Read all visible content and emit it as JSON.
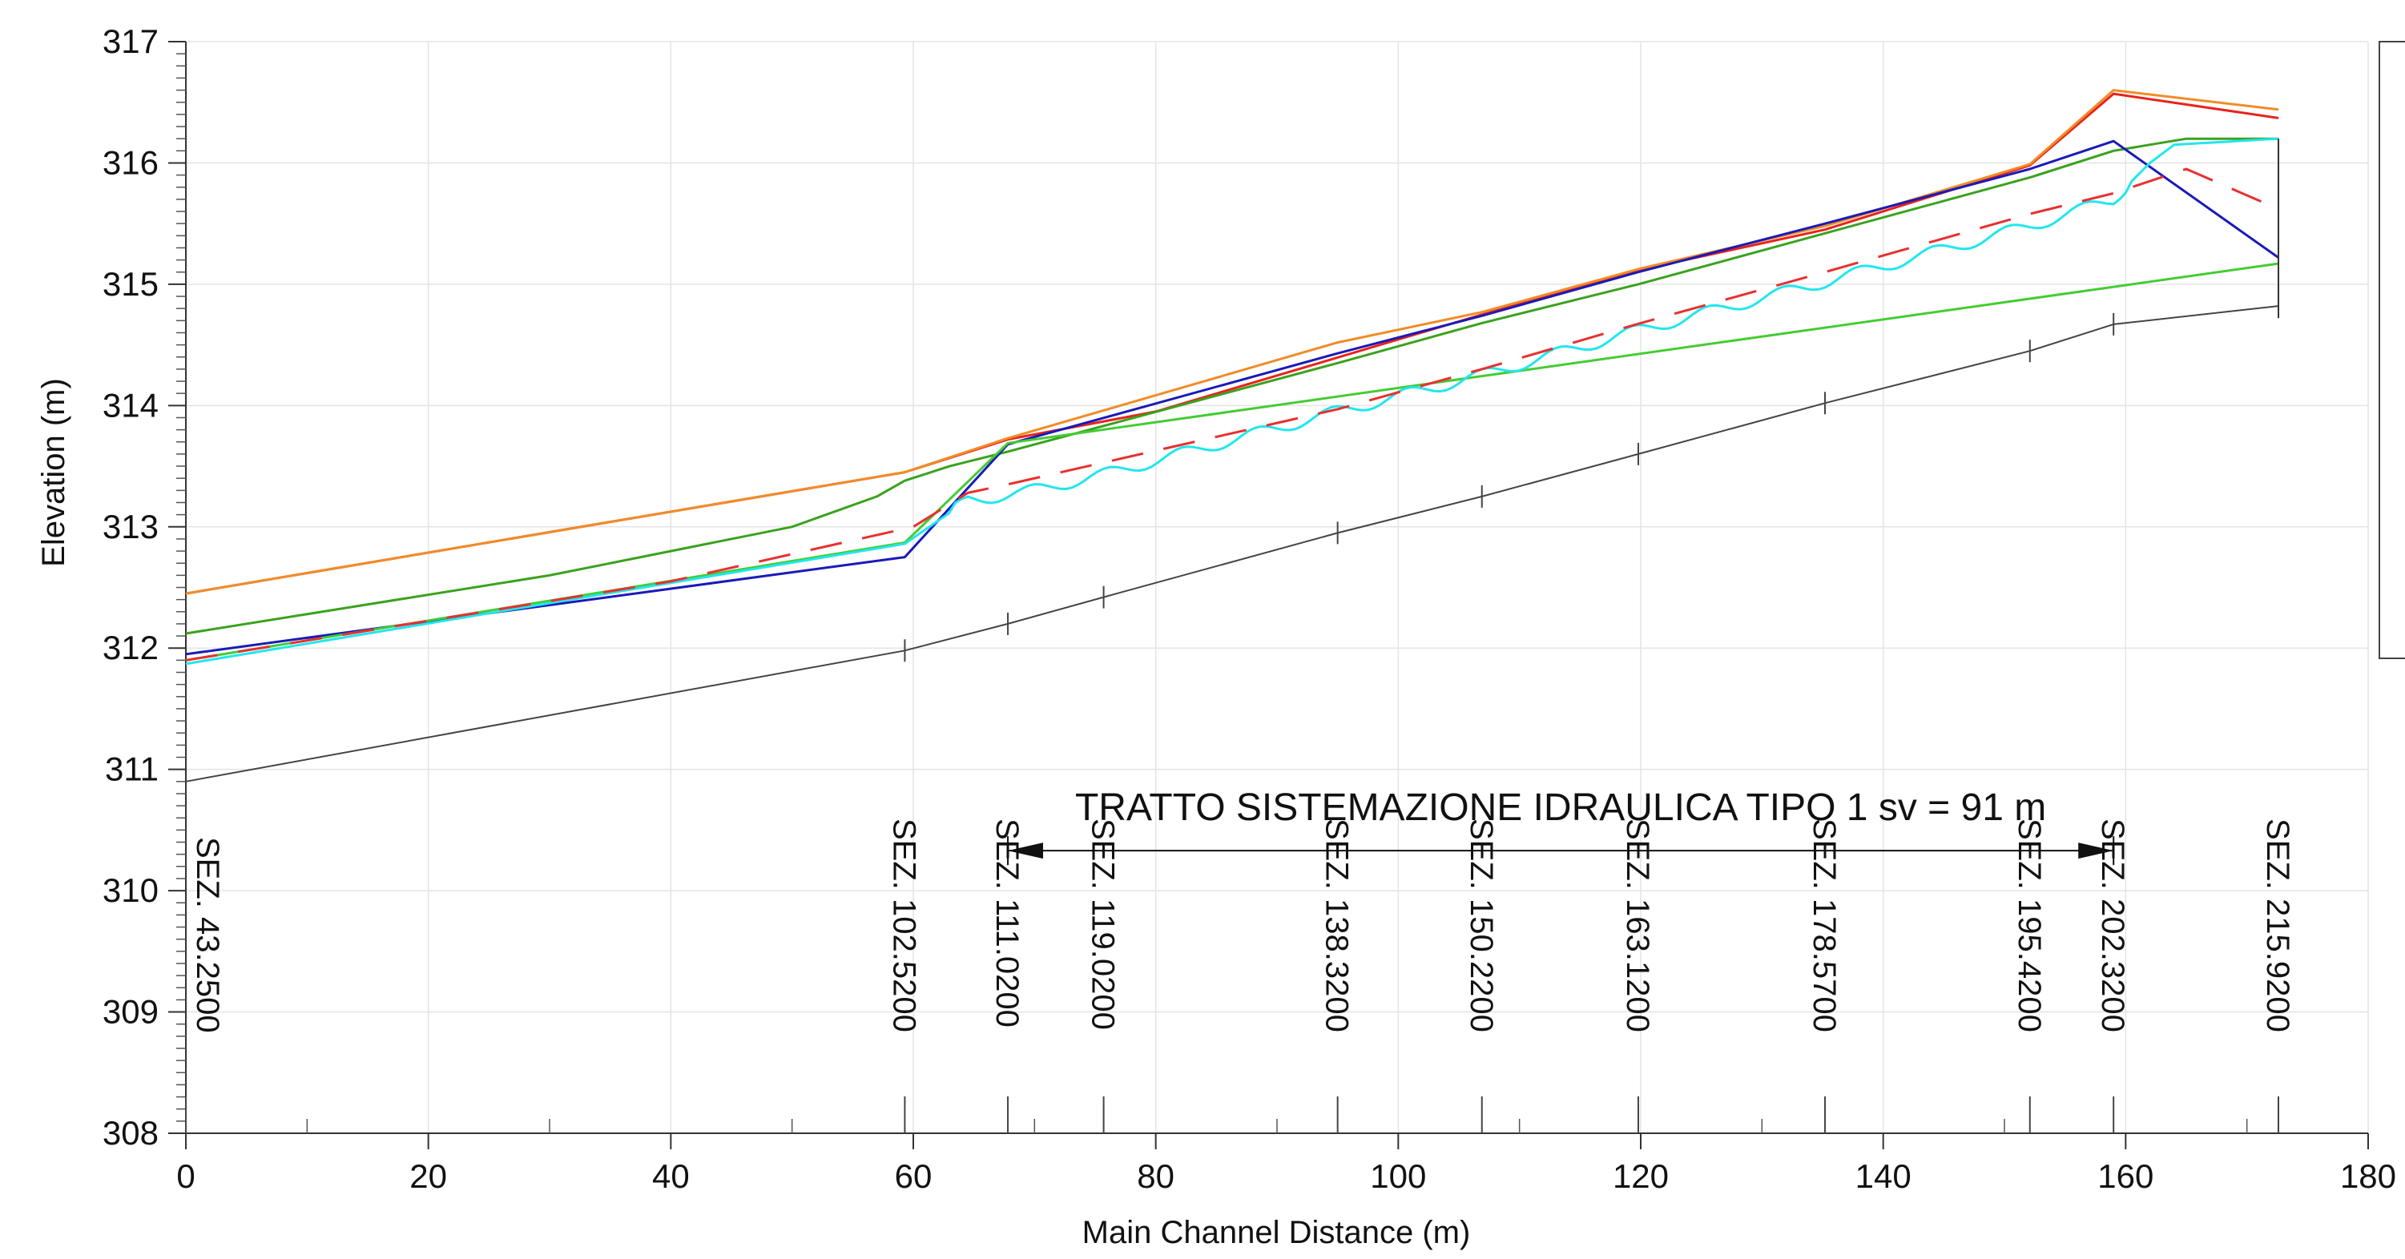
{
  "chart_data": {
    "type": "line",
    "title": "",
    "xlabel": "Main Channel Distance (m)",
    "ylabel": "Elevation (m)",
    "xlim": [
      0,
      180
    ],
    "ylim": [
      308,
      317
    ],
    "x_ticks": [
      0,
      20,
      40,
      60,
      80,
      100,
      120,
      140,
      160,
      180
    ],
    "x_tick_labels": [
      "0",
      "20",
      "40",
      "60",
      "80",
      "100",
      "120",
      "140",
      "160",
      "180"
    ],
    "y_ticks": [
      308,
      309,
      310,
      311,
      312,
      313,
      314,
      315,
      316,
      317
    ],
    "y_tick_labels": [
      "308",
      "309",
      "310",
      "311",
      "312",
      "313",
      "314",
      "315",
      "316",
      "317"
    ],
    "grid": true,
    "legend": "right (blank)",
    "colors": {
      "ground": "#444444",
      "red": "#e8231c",
      "orange": "#f08c28",
      "green": "#3aa21e",
      "lightgreen": "#44cc33",
      "blue": "#1a1ab8",
      "cyan": "#22e6ee",
      "dashed": "#e83030"
    },
    "series": [
      {
        "key": "ground",
        "style": "solid",
        "x": [
          0,
          59.3,
          67.8,
          75.7,
          95,
          106.9,
          119.8,
          135.2,
          152.1,
          159,
          172.6
        ],
        "y": [
          310.9,
          311.98,
          312.2,
          312.42,
          312.95,
          313.25,
          313.6,
          314.02,
          314.45,
          314.67,
          314.82
        ]
      },
      {
        "key": "red",
        "style": "solid",
        "x": [
          0,
          59.3,
          67.8,
          80,
          106.9,
          120,
          135.2,
          152.1,
          159,
          172.6
        ],
        "y": [
          312.45,
          313.45,
          313.72,
          313.95,
          314.75,
          315.12,
          315.45,
          315.98,
          316.57,
          316.37
        ]
      },
      {
        "key": "orange",
        "style": "solid",
        "x": [
          0,
          59.3,
          67.8,
          95,
          106.9,
          120,
          135.2,
          152.1,
          159,
          172.6
        ],
        "y": [
          312.45,
          313.45,
          313.73,
          314.52,
          314.77,
          315.13,
          315.48,
          315.99,
          316.6,
          316.44
        ]
      },
      {
        "key": "green",
        "style": "solid",
        "x": [
          0,
          30,
          50,
          57,
          59.3,
          63,
          67.8,
          95,
          106.9,
          119.8,
          135.2,
          152.1,
          159,
          162,
          165,
          172.6
        ],
        "y": [
          312.12,
          312.6,
          313.0,
          313.25,
          313.38,
          313.5,
          313.62,
          314.35,
          314.68,
          315.0,
          315.42,
          315.88,
          316.1,
          316.15,
          316.2,
          316.2
        ]
      },
      {
        "key": "blue",
        "style": "solid",
        "x": [
          0,
          59.3,
          67.8,
          95,
          106.9,
          119.8,
          135.2,
          152.1,
          159,
          172.6
        ],
        "y": [
          311.95,
          312.75,
          313.68,
          314.43,
          314.74,
          315.1,
          315.5,
          315.95,
          316.18,
          315.22
        ]
      },
      {
        "key": "lightgreen",
        "style": "solid",
        "x": [
          0,
          59.3,
          67.8,
          172.6
        ],
        "y": [
          311.9,
          312.87,
          313.69,
          315.17
        ]
      },
      {
        "key": "cyan",
        "style": "wavy",
        "x": [
          0,
          59.3,
          64.5,
          69,
          75.7,
          95,
          106.9,
          119.8,
          135.2,
          152.1,
          159,
          162,
          164,
          172.6
        ],
        "y": [
          311.87,
          312.86,
          313.22,
          313.28,
          313.43,
          313.95,
          314.25,
          314.62,
          315.02,
          315.48,
          315.7,
          316.0,
          316.15,
          316.2
        ]
      },
      {
        "key": "dashed",
        "style": "dashed",
        "x": [
          0,
          40,
          60,
          64.5,
          67.8,
          95,
          106.9,
          120,
          135.2,
          152.1,
          159,
          165,
          172.6
        ],
        "y": [
          311.9,
          312.55,
          313.0,
          313.28,
          313.35,
          313.97,
          314.3,
          314.68,
          315.1,
          315.58,
          315.75,
          315.95,
          315.62
        ]
      }
    ],
    "sections": [
      {
        "x": 0,
        "label": "SEZ. 43.2500"
      },
      {
        "x": 59.3,
        "label": "SEZ. 102.5200"
      },
      {
        "x": 67.8,
        "label": "SEZ. 111.0200"
      },
      {
        "x": 75.7,
        "label": "SEZ. 119.0200"
      },
      {
        "x": 95,
        "label": "SEZ. 138.3200"
      },
      {
        "x": 106.9,
        "label": "SEZ. 150.2200"
      },
      {
        "x": 119.8,
        "label": "SEZ. 163.1200"
      },
      {
        "x": 135.2,
        "label": "SEZ. 178.5700"
      },
      {
        "x": 152.1,
        "label": "SEZ. 195.4200"
      },
      {
        "x": 159,
        "label": "SEZ. 202.3200"
      },
      {
        "x": 172.6,
        "label": "SEZ. 215.9200"
      }
    ],
    "annotation": {
      "text": "TRATTO SISTEMAZIONE IDRAULICA  TIPO 1 sv = 91 m",
      "x_start": 67.8,
      "x_end": 159,
      "y": 310.33
    }
  }
}
